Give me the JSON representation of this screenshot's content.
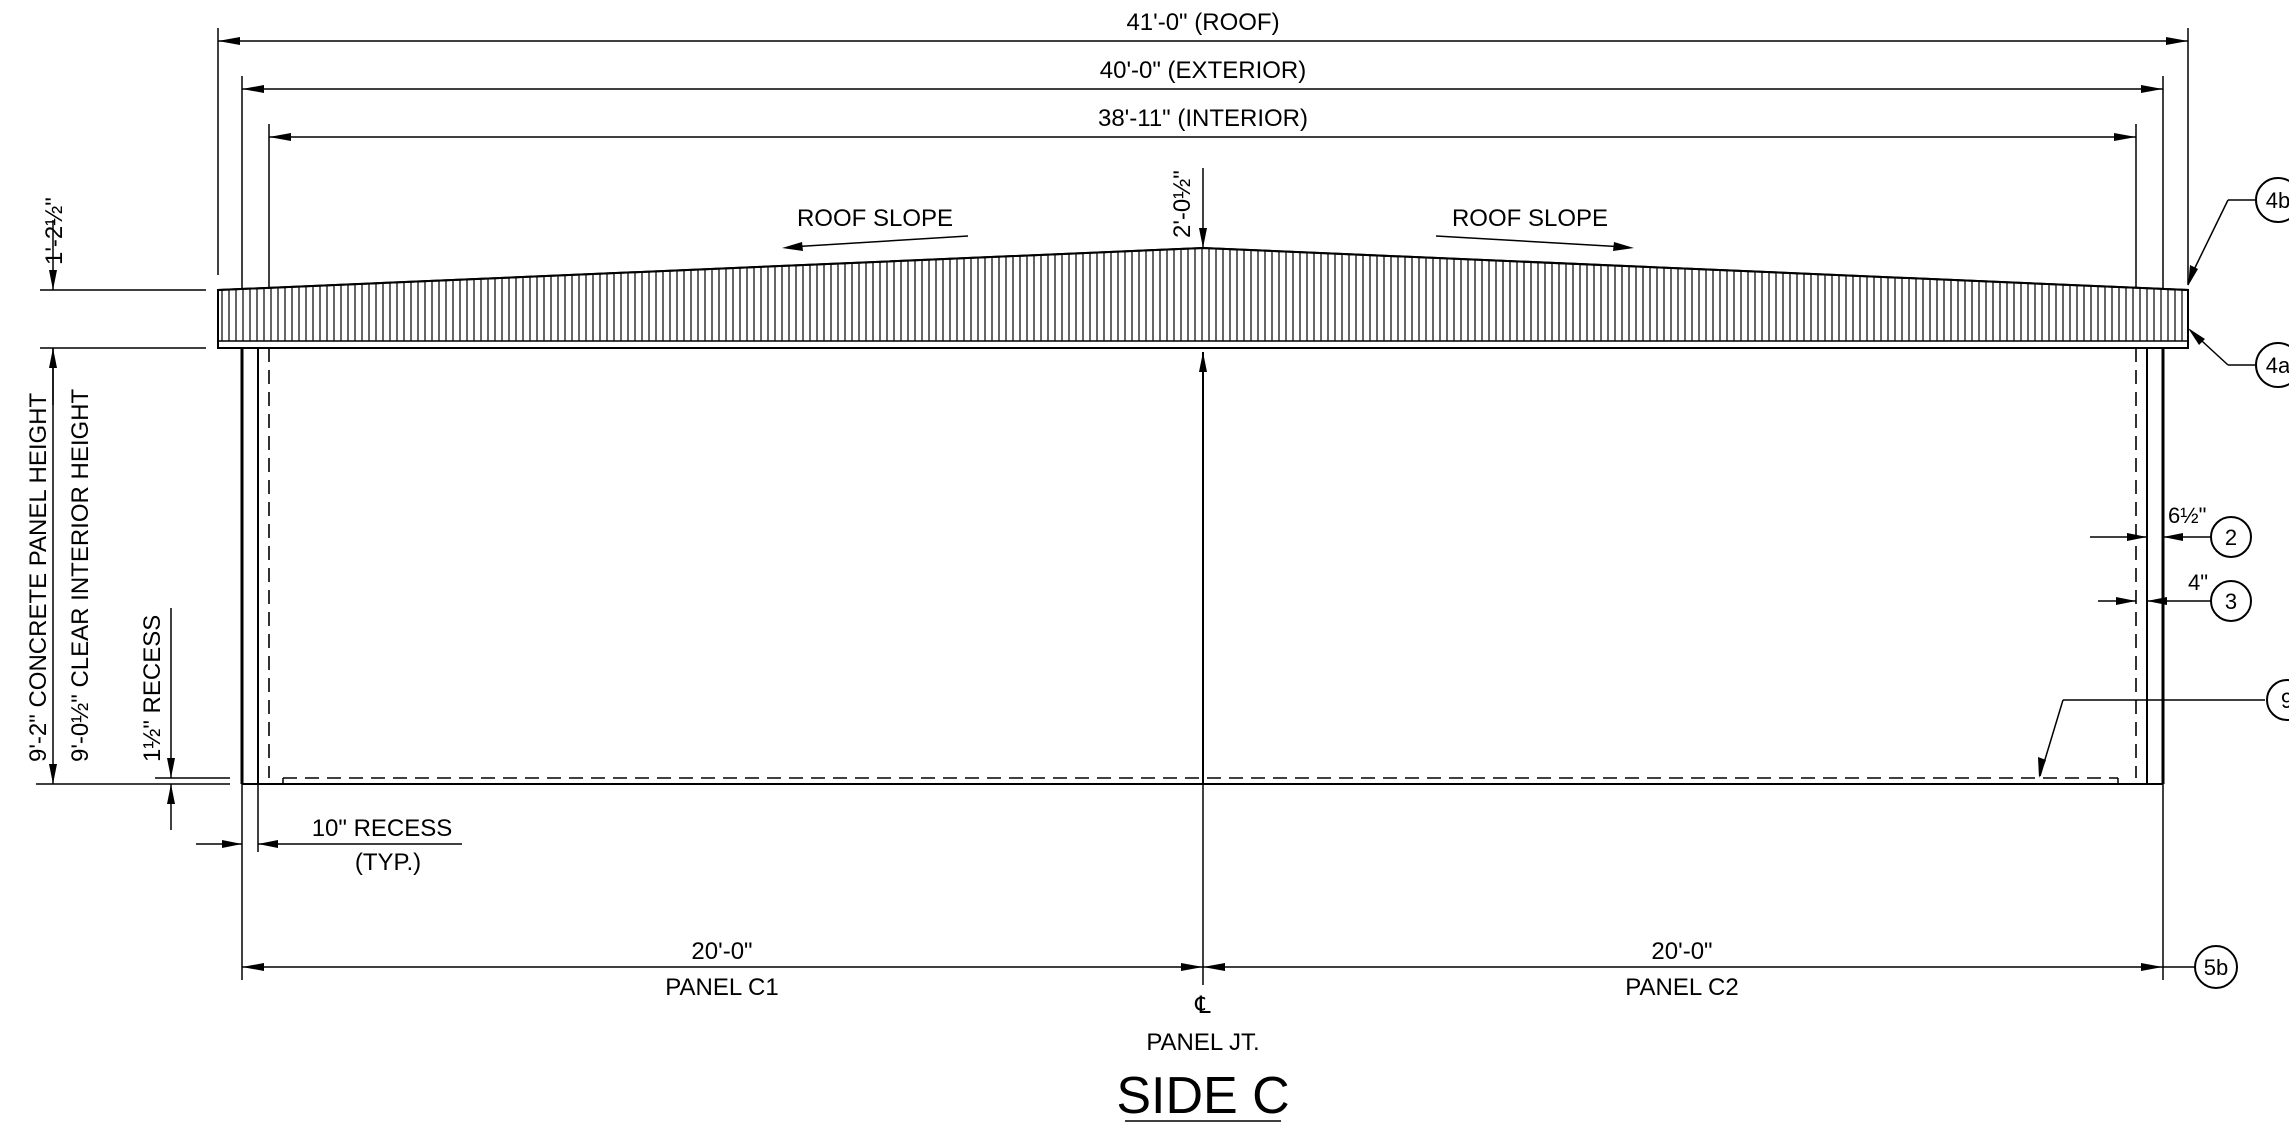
{
  "dimensions": {
    "roof": "41'-0\" (ROOF)",
    "exterior": "40'-0\" (EXTERIOR)",
    "interior": "38'-11\" (INTERIOR)",
    "ridge_rise": "2'-0½\"",
    "roof_edge": "1'-2½\"",
    "panel_height": "9'-2\" CONCRETE PANEL HEIGHT",
    "clear_height": "9'-0½\" CLEAR INTERIOR HEIGHT",
    "recess_height": "1½\" RECESS",
    "recess_width_line1": "10\" RECESS",
    "recess_width_line2": "(TYP.)",
    "wall_thickness": "6½\"",
    "inner_thickness": "4\"",
    "panel_c1_width": "20'-0\"",
    "panel_c1_label": "PANEL C1",
    "panel_c2_width": "20'-0\"",
    "panel_c2_label": "PANEL C2",
    "centerline_symbol": "℄",
    "panel_joint": "PANEL JT."
  },
  "notes": {
    "roof_slope_left": "ROOF SLOPE",
    "roof_slope_right": "ROOF SLOPE"
  },
  "callouts": {
    "c4b": "4b",
    "c4a": "4a",
    "c2": "2",
    "c3": "3",
    "c9": "9",
    "c5b": "5b"
  },
  "title": "SIDE C"
}
